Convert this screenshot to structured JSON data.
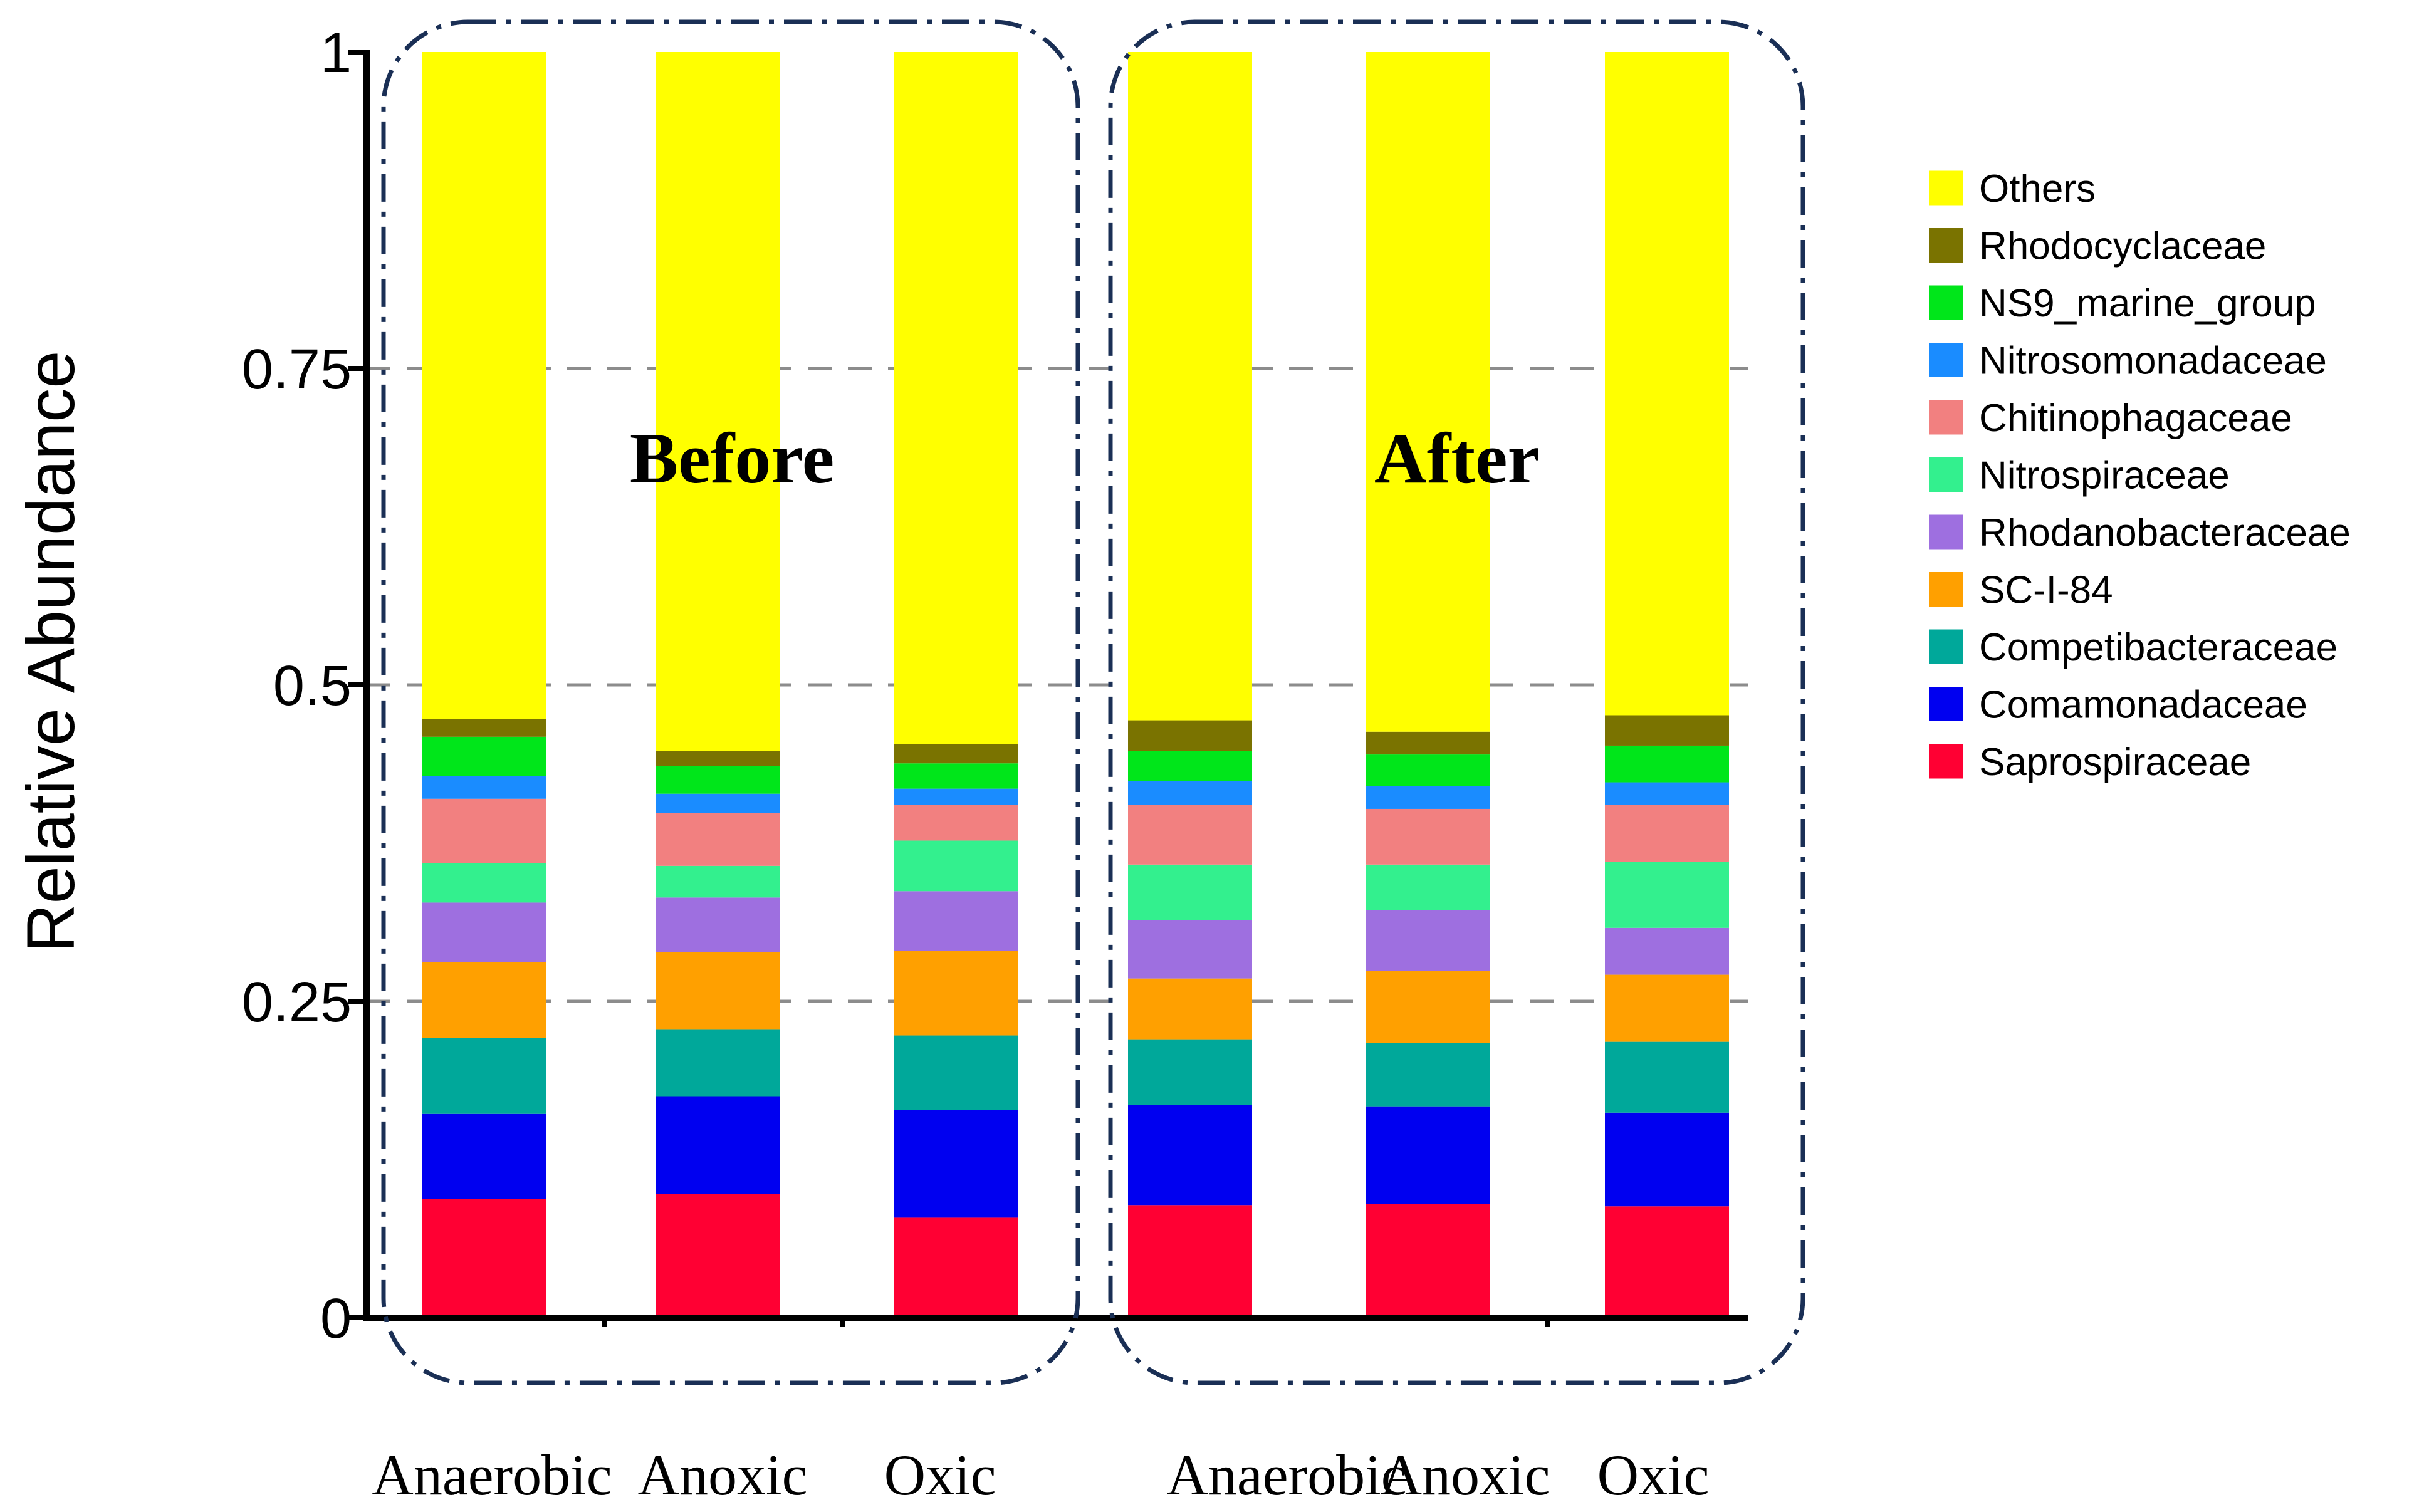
{
  "chart_data": {
    "type": "bar",
    "stacked": true,
    "ylabel": "Relative Abundance",
    "xlabel": "",
    "ylim": [
      0,
      1
    ],
    "yticks": [
      "0",
      "0.25",
      "0.5",
      "0.75",
      "1"
    ],
    "grid": "horizontal dashed at 0.25, 0.5, 0.75",
    "legend_position": "right",
    "groups": [
      {
        "label": "Before",
        "categories": [
          0,
          1,
          2
        ]
      },
      {
        "label": "After",
        "categories": [
          3,
          4,
          5
        ]
      }
    ],
    "categories": [
      "Anaerobic",
      "Anoxic",
      "Oxic",
      "Anaerobic",
      "Anoxic",
      "Oxic"
    ],
    "series": [
      {
        "name": "Saprospiraceae",
        "color": "#ff0033",
        "values": [
          0.094,
          0.098,
          0.079,
          0.089,
          0.09,
          0.088
        ]
      },
      {
        "name": "Comamonadaceae",
        "color": "#0000f0",
        "values": [
          0.067,
          0.077,
          0.085,
          0.079,
          0.077,
          0.074
        ]
      },
      {
        "name": "Competibacteraceae",
        "color": "#00a89a",
        "values": [
          0.06,
          0.053,
          0.059,
          0.052,
          0.05,
          0.056
        ]
      },
      {
        "name": "SC-I-84",
        "color": "#ffa000",
        "values": [
          0.06,
          0.061,
          0.067,
          0.048,
          0.057,
          0.053
        ]
      },
      {
        "name": "Rhodanobacteraceae",
        "color": "#9e6fe0",
        "values": [
          0.047,
          0.043,
          0.047,
          0.046,
          0.048,
          0.037
        ]
      },
      {
        "name": "Nitrospiraceae",
        "color": "#33f08e",
        "values": [
          0.031,
          0.025,
          0.04,
          0.044,
          0.036,
          0.052
        ]
      },
      {
        "name": "Chitinophagaceae",
        "color": "#f28080",
        "values": [
          0.051,
          0.042,
          0.028,
          0.047,
          0.044,
          0.045
        ]
      },
      {
        "name": "Nitrosomonadaceae",
        "color": "#1a8cff",
        "values": [
          0.018,
          0.015,
          0.013,
          0.019,
          0.018,
          0.018
        ]
      },
      {
        "name": "NS9_marine_group",
        "color": "#00e61a",
        "values": [
          0.031,
          0.022,
          0.02,
          0.024,
          0.025,
          0.029
        ]
      },
      {
        "name": "Rhodocyclaceae",
        "color": "#7a7300",
        "values": [
          0.014,
          0.012,
          0.015,
          0.024,
          0.018,
          0.024
        ]
      },
      {
        "name": "Others",
        "color": "#ffff00",
        "values": [
          0.527,
          0.552,
          0.547,
          0.528,
          0.537,
          0.524
        ]
      }
    ],
    "legend_order": [
      "Others",
      "Rhodocyclaceae",
      "NS9_marine_group",
      "Nitrosomonadaceae",
      "Chitinophagaceae",
      "Nitrospiraceae",
      "Rhodanobacteraceae",
      "SC-I-84",
      "Competibacteraceae",
      "Comamonadaceae",
      "Saprospiraceae"
    ]
  }
}
